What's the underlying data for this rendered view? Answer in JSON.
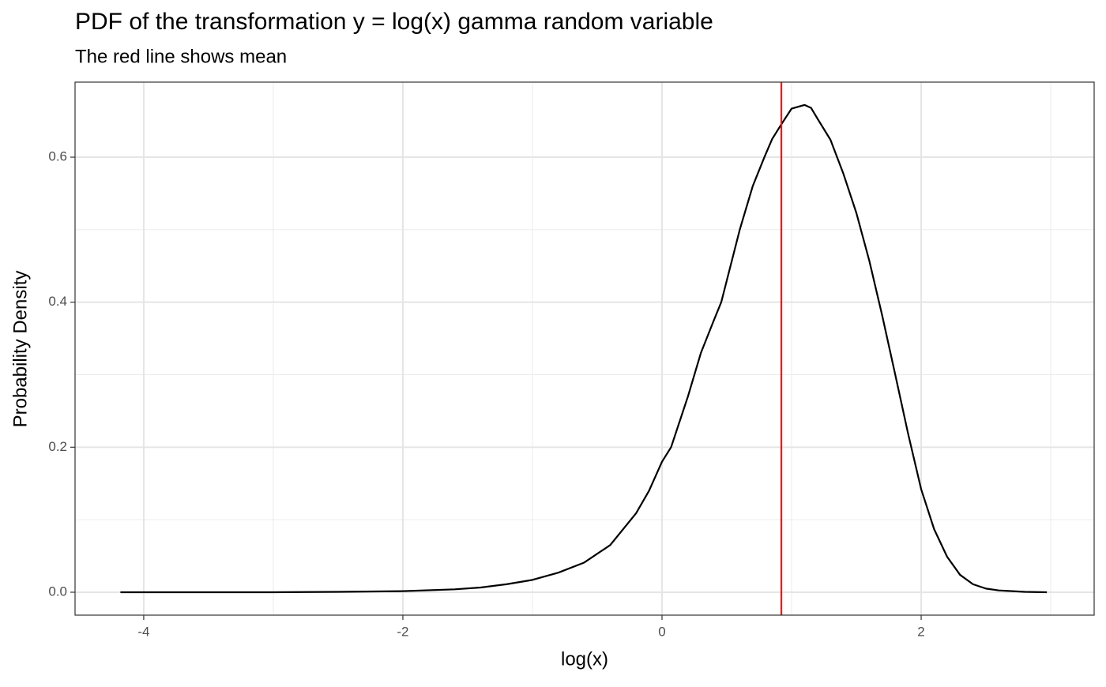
{
  "chart_data": {
    "type": "line",
    "title": "PDF of the transformation y = log(x) gamma random variable",
    "subtitle": "The red line shows mean",
    "x_label": "log(x)",
    "y_label": "Probability Density",
    "x": [
      -4.18,
      -3.5,
      -3,
      -2.5,
      -2,
      -1.6,
      -1.4,
      -1.2,
      -1.0,
      -0.8,
      -0.6,
      -0.4,
      -0.2,
      -0.1,
      0,
      0.07,
      0.2,
      0.3,
      0.4,
      0.457,
      0.5,
      0.6,
      0.7,
      0.79,
      0.85,
      0.92,
      1.0,
      1.1,
      1.15,
      1.2,
      1.3,
      1.4,
      1.5,
      1.6,
      1.7,
      1.8,
      1.9,
      2.0,
      2.1,
      2.2,
      2.3,
      2.4,
      2.5,
      2.6,
      2.8,
      2.97
    ],
    "values": [
      0,
      0,
      0,
      0.0005,
      0.0015,
      0.004,
      0.0065,
      0.011,
      0.017,
      0.027,
      0.041,
      0.065,
      0.109,
      0.14,
      0.18,
      0.2,
      0.27,
      0.33,
      0.375,
      0.4,
      0.43,
      0.5,
      0.56,
      0.6,
      0.625,
      0.645,
      0.667,
      0.672,
      0.668,
      0.653,
      0.624,
      0.577,
      0.523,
      0.457,
      0.381,
      0.3,
      0.218,
      0.142,
      0.087,
      0.049,
      0.024,
      0.011,
      0.005,
      0.0025,
      0.0005,
      0
    ],
    "color": "#000000",
    "mean_line": {
      "x": 0.921,
      "color": "#ff0000"
    },
    "xlim": [
      -4.53,
      3.335
    ],
    "ylim": [
      -0.0316,
      0.7035
    ],
    "xticks": [
      -4,
      -2,
      0,
      2
    ],
    "yticks": [
      {
        "value": 0,
        "label": "0.0"
      },
      0.2,
      0.4,
      0.6
    ],
    "xminor": [
      -3,
      -1,
      1,
      3
    ],
    "yminor": [
      0.1,
      0.3,
      0.5
    ],
    "grid": true
  }
}
